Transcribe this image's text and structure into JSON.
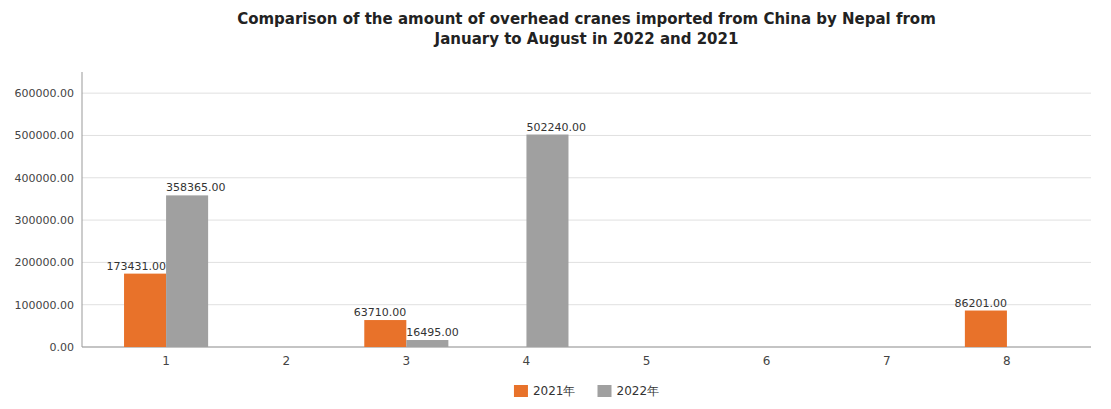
{
  "chart_data": {
    "type": "bar",
    "title": "Comparison of the amount of overhead cranes imported from China by Nepal from\nJanuary to August in 2022 and 2021",
    "categories": [
      "1",
      "2",
      "3",
      "4",
      "5",
      "6",
      "7",
      "8"
    ],
    "series": [
      {
        "name": "2021年",
        "color": "#E8722A",
        "values": [
          173431.0,
          0,
          63710.0,
          0,
          0,
          0,
          0,
          86201.0
        ],
        "value_labels": [
          "173431.00",
          null,
          "63710.00",
          null,
          null,
          null,
          null,
          "86201.00"
        ]
      },
      {
        "name": "2022年",
        "color": "#A0A0A0",
        "values": [
          358365.0,
          0,
          16495.0,
          502240.0,
          0,
          0,
          0,
          0
        ],
        "value_labels": [
          "358365.00",
          null,
          "16495.00",
          "502240.00",
          null,
          null,
          null,
          null
        ]
      }
    ],
    "ylim": [
      0,
      650000
    ],
    "yticks": [
      {
        "value": 0,
        "label": "0.00"
      },
      {
        "value": 100000,
        "label": "100000.00"
      },
      {
        "value": 200000,
        "label": "200000.00"
      },
      {
        "value": 300000,
        "label": "300000.00"
      },
      {
        "value": 400000,
        "label": "400000.00"
      },
      {
        "value": 500000,
        "label": "500000.00"
      },
      {
        "value": 600000,
        "label": "600000.00"
      }
    ],
    "grid": true,
    "legend": "bottom",
    "data_labels": true
  }
}
